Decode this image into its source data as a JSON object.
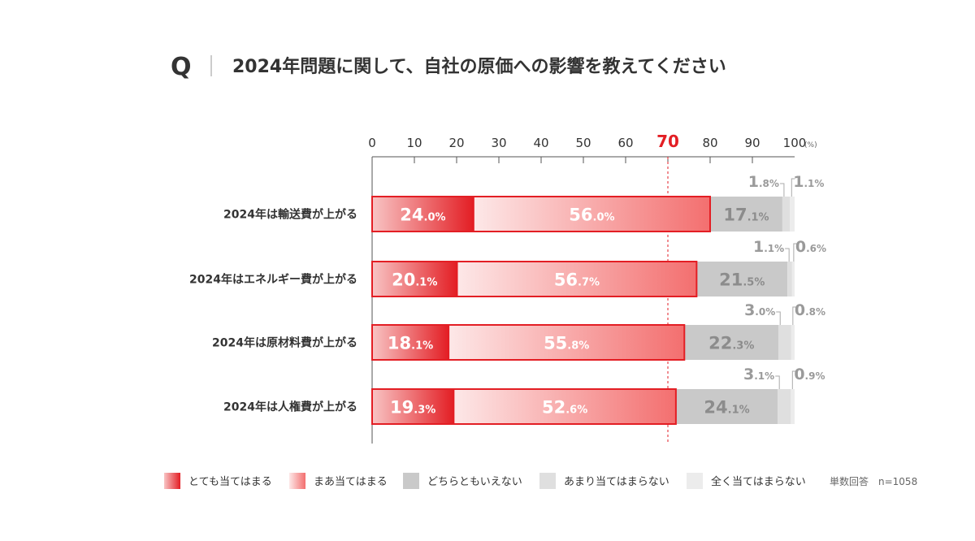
{
  "question": {
    "prefix": "Q",
    "text": "2024年問題に関して、自社の原価への影響を教えてください"
  },
  "colors": {
    "dark_red": "#e31e24",
    "mid_red": "#f36f6f",
    "gray_mid": "#c9c9c9",
    "gray_light": "#dfdfdf",
    "gray_lighter": "#ececec",
    "bar_border": "#e31e24",
    "ref_line": "#e31e24",
    "label_gray": "#9a9a9a",
    "text_dark": "#333333"
  },
  "chart_data": {
    "type": "bar",
    "orientation": "horizontal",
    "stacked": true,
    "xlim": [
      0,
      100
    ],
    "xticks": [
      "0",
      "10",
      "20",
      "30",
      "40",
      "50",
      "60",
      "70",
      "80",
      "90",
      "100"
    ],
    "x_unit": "(%)",
    "reference_line": {
      "value": 70,
      "label": "70"
    },
    "categories": [
      "2024年は輸送費が上がる",
      "2024年はエネルギー費が上がる",
      "2024年は原材料費が上がる",
      "2024年は人権費が上がる"
    ],
    "series": [
      {
        "name": "とても当てはまる",
        "values": [
          24.0,
          20.1,
          18.1,
          19.3
        ]
      },
      {
        "name": "まあ当てはまる",
        "values": [
          56.0,
          56.7,
          55.8,
          52.6
        ]
      },
      {
        "name": "どちらともいえない",
        "values": [
          17.1,
          21.5,
          22.3,
          24.1
        ]
      },
      {
        "name": "あまり当てはまらない",
        "values": [
          1.8,
          1.1,
          3.0,
          3.1
        ]
      },
      {
        "name": "全く当てはまらない",
        "values": [
          1.1,
          0.6,
          0.8,
          0.9
        ]
      }
    ],
    "legend_position": "bottom",
    "note": "単数回答　n=1058"
  }
}
